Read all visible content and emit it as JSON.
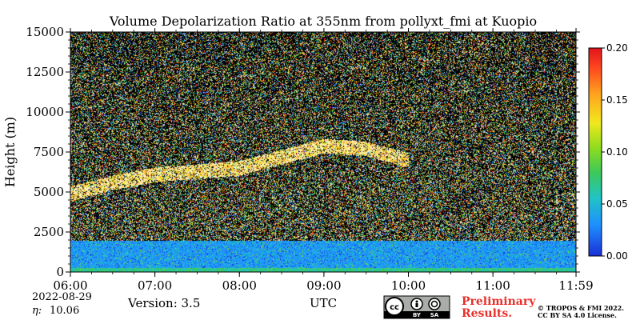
{
  "chart_data": {
    "type": "heatmap",
    "title": "Volume Depolarization Ratio at 355nm from pollyxt_fmi at Kuopio",
    "ylabel": "Height (m)",
    "xlabel": "UTC",
    "x_ticks": [
      "06:00",
      "07:00",
      "08:00",
      "09:00",
      "10:00",
      "11:00",
      "11:59"
    ],
    "y_ticks": [
      "0",
      "2500",
      "5000",
      "7500",
      "10000",
      "12500",
      "15000"
    ],
    "xlim_hours": [
      6.0,
      11.983
    ],
    "ylim": [
      0,
      15000
    ],
    "colorbar": {
      "ticks": [
        "0.00",
        "0.05",
        "0.10",
        "0.15",
        "0.20"
      ],
      "range": [
        0.0,
        0.2
      ],
      "colors": [
        "#1a2fd8",
        "#1e90ff",
        "#20c4c4",
        "#3cc85a",
        "#8fdc1e",
        "#f0e81e",
        "#ffa21e",
        "#ff4a1e",
        "#e0141e"
      ]
    },
    "features": [
      {
        "kind": "aerosol-layer",
        "x_hours": [
          6.0,
          6.5,
          7.0,
          7.5,
          8.0,
          8.5,
          9.0,
          9.5,
          10.0
        ],
        "heights_m": [
          4900,
          5600,
          6100,
          6300,
          6500,
          7200,
          7900,
          7700,
          7000
        ]
      },
      {
        "kind": "boundary-layer",
        "top_m": 2000
      }
    ]
  },
  "footer": {
    "date": "2022-08-29",
    "eta_label": "η:",
    "eta_value": "10.06",
    "version": "Version: 3.5",
    "prelim_line1": "Preliminary",
    "prelim_line2": "Results.",
    "copyright_line1": "© TROPOS & FMI 2022.",
    "copyright_line2": "CC BY SA 4.0 License.",
    "cc_badge": "cc-by-sa-badge",
    "cc_text_by": "BY",
    "cc_text_sa": "SA"
  }
}
